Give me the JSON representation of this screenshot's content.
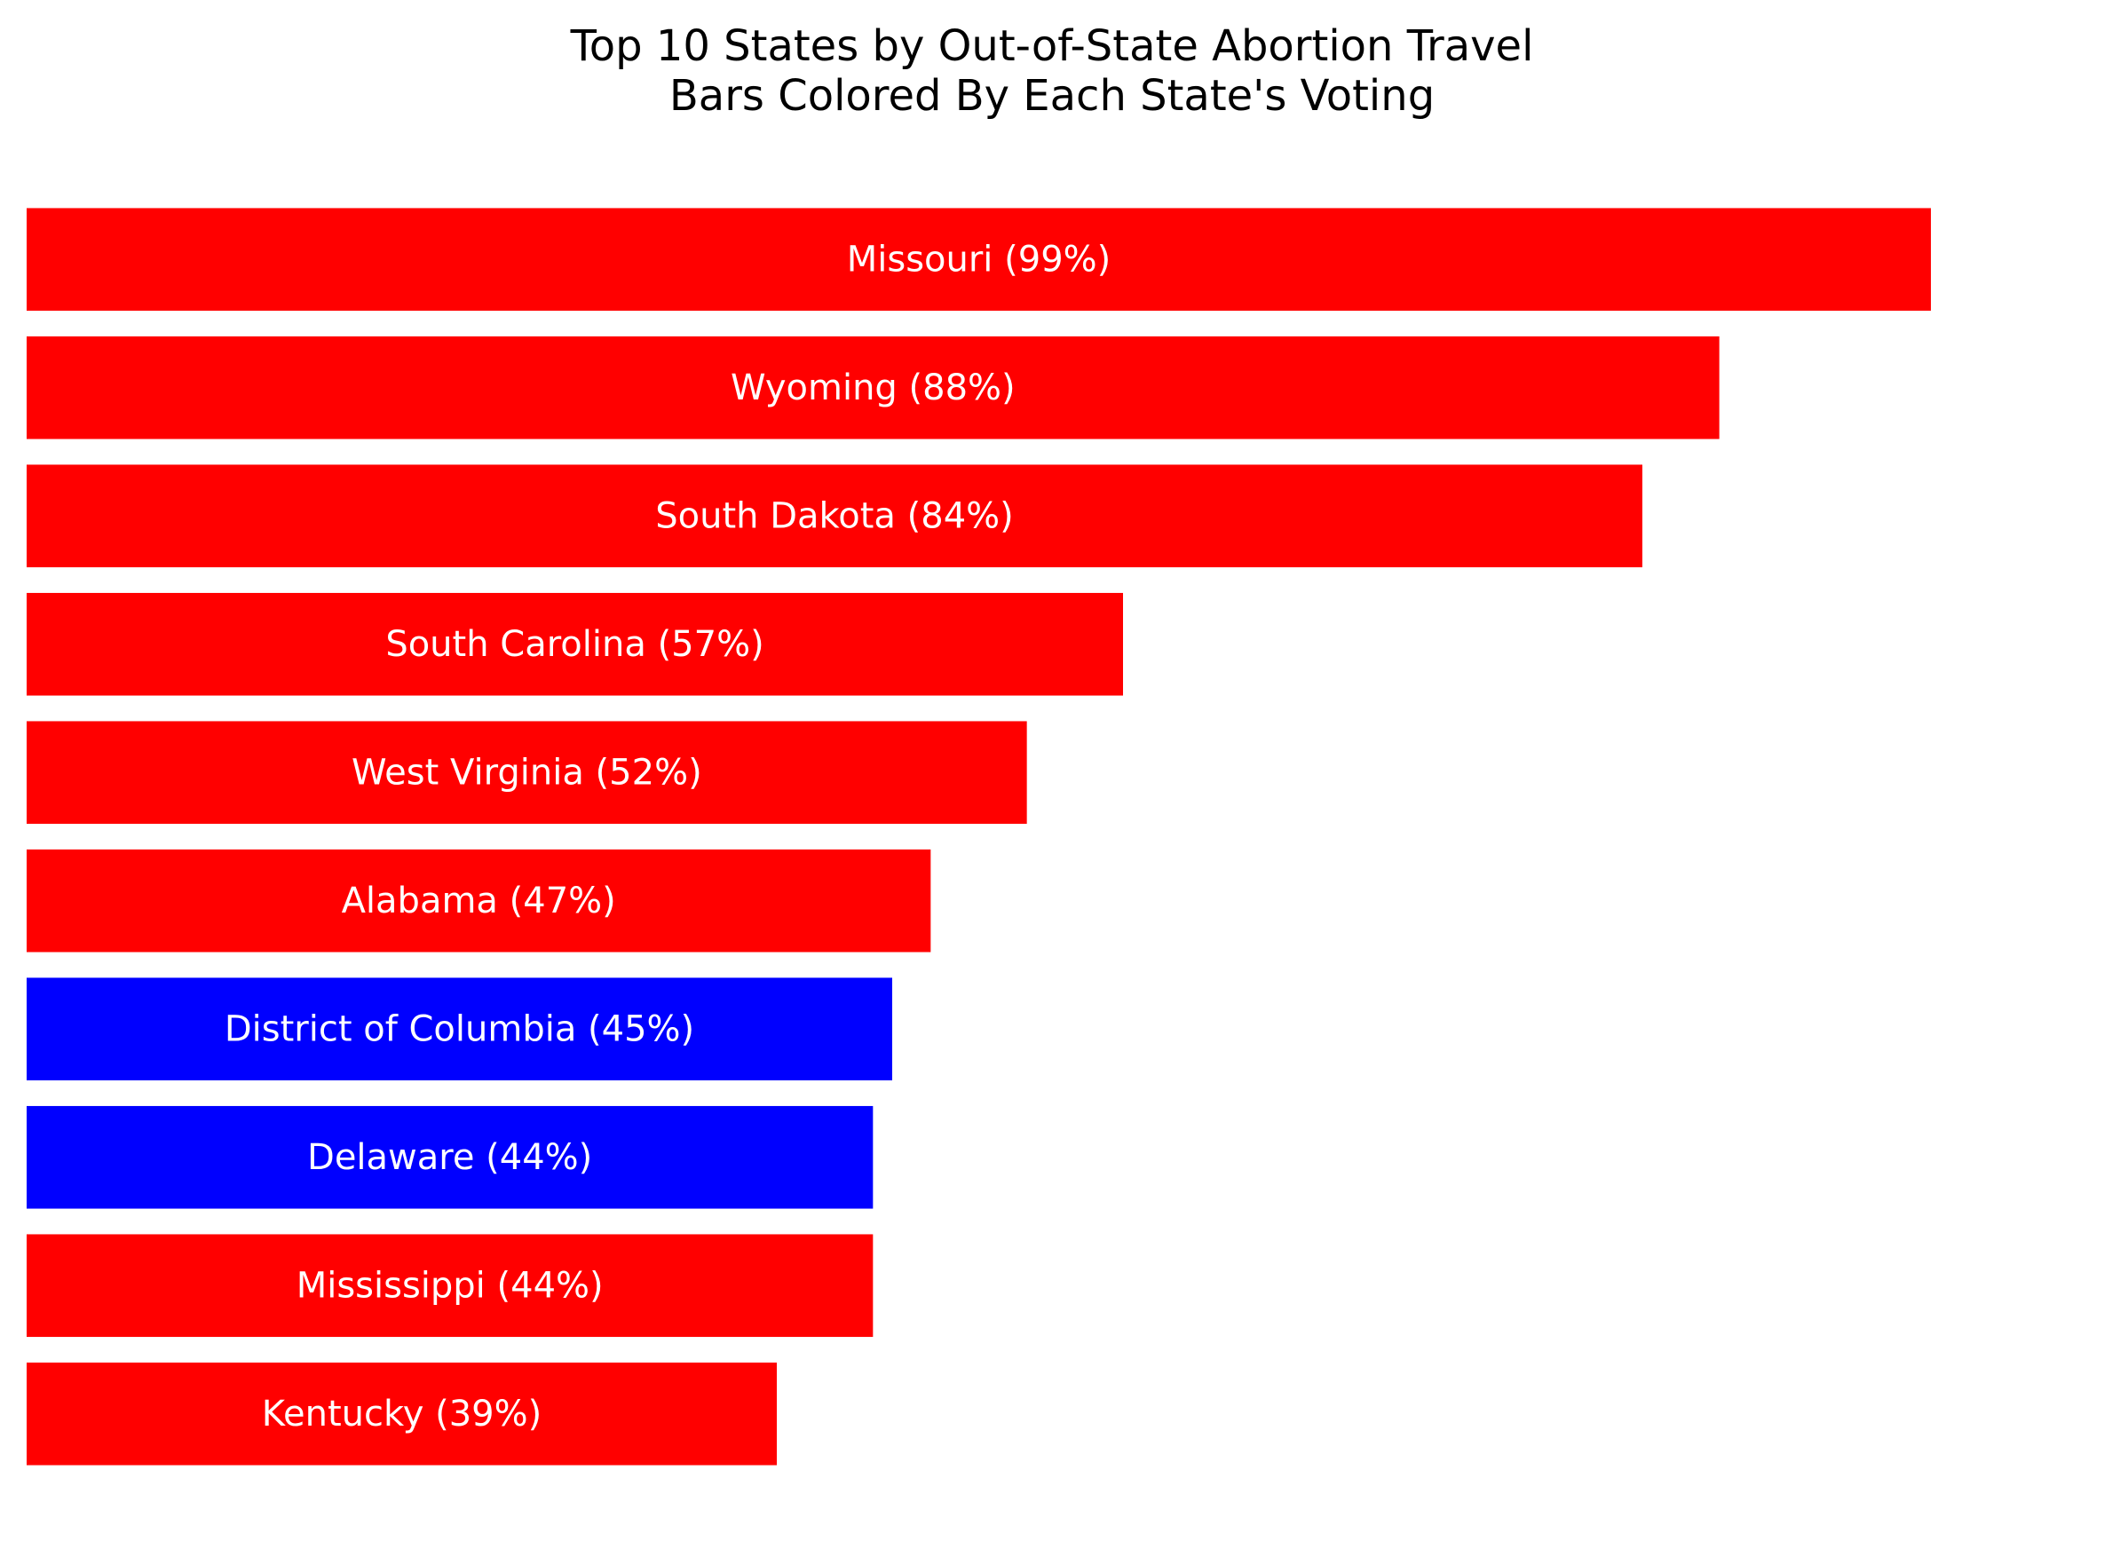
{
  "chart_data": {
    "type": "bar",
    "orientation": "horizontal",
    "title": "Top 10 States by Out-of-State Abortion Travel",
    "subtitle": "Bars Colored By Each State's Voting",
    "categories": [
      "Missouri",
      "Wyoming",
      "South Dakota",
      "South Carolina",
      "West Virginia",
      "Alabama",
      "District of Columbia",
      "Delaware",
      "Mississippi",
      "Kentucky"
    ],
    "values": [
      99,
      88,
      84,
      57,
      52,
      47,
      45,
      44,
      44,
      39
    ],
    "bar_labels": [
      "Missouri (99%)",
      "Wyoming (88%)",
      "South Dakota (84%)",
      "South Carolina (57%)",
      "West Virginia (52%)",
      "Alabama (47%)",
      "District of Columbia (45%)",
      "Delaware (44%)",
      "Mississippi (44%)",
      "Kentucky (39%)"
    ],
    "bar_colors": [
      "#ff0000",
      "#ff0000",
      "#ff0000",
      "#ff0000",
      "#ff0000",
      "#ff0000",
      "#0000ff",
      "#0000ff",
      "#ff0000",
      "#ff0000"
    ],
    "xlabel": "",
    "ylabel": "",
    "xlim": [
      0,
      105
    ],
    "axes_visible": false,
    "grid": false,
    "legend": false
  },
  "colors": {
    "background": "#ffffff",
    "republican": "#ff0000",
    "democrat": "#0000ff",
    "label_text": "#ffffff",
    "title_text": "#000000"
  }
}
